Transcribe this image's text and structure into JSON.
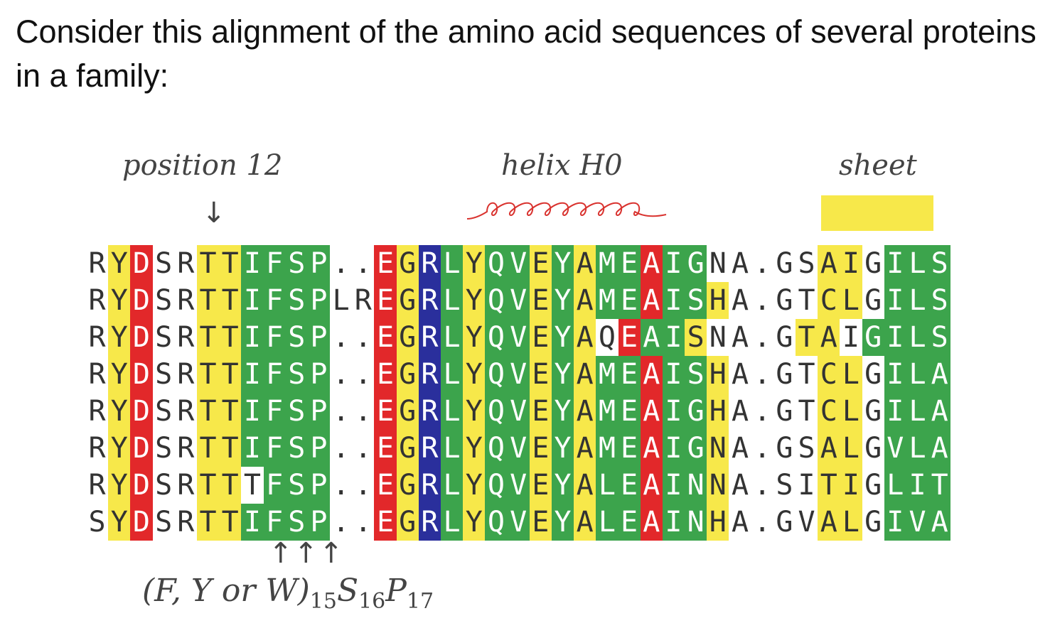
{
  "question": "Consider this alignment of the amino acid sequences of several proteins in a family:",
  "labels": {
    "position": "position 12",
    "helix": "helix H0",
    "sheet": "sheet"
  },
  "arrows": {
    "down": "↓",
    "up": "↑↑↑"
  },
  "motif": {
    "prefix": "(F, Y or W)",
    "sub1": "15",
    "s": "S",
    "sub2": "16",
    "p": "P",
    "sub3": "17"
  },
  "colors": {
    "yellow": "#f7e84a",
    "green": "#3ca44c",
    "red": "#e2282a",
    "blue": "#2a2f9c",
    "helix_coil": "#d9332f"
  },
  "alignment": [
    {
      "seq": "RYDSRTTIFSP..EGRLYQVEYAMEAIGNA.GSAIGILS",
      "colors": "-YR--YYGGGG--RYBGYGGYGYGGRGG-----YY-GGGGY"
    },
    {
      "seq": "RYDSRTTIFSPLREGRLYQVEYAMEAISHA.GTCLGILS",
      "colors": "-YR--YYGGGG--RYBGYGGYGYGGRGGY----YY-GGGGY"
    },
    {
      "seq": "RYDSRTTIFSP..EGRLYQVEYAQEAISNA.GTAIGILS",
      "colors": "-YR--YYGGGG--RYBGYGGYGY-RGGY----YY-GGGGY"
    },
    {
      "seq": "RYDSRTTIFSP..EGRLYQVEYAMEAISHA.GTCLGILA",
      "colors": "-YR--YYGGGG--RYBGYGGYGYGGRGGY----YY-GGGG-"
    },
    {
      "seq": "RYDSRTTIFSP..EGRLYQVEYAMEAIGHA.GTCLGILA",
      "colors": "-YR--YYGGGG--RYBGYGGYGYGGRGGY----YY-GGGG-"
    },
    {
      "seq": "RYDSRTTIFSP..EGRLYQVEYAMEAIGNA.GSALGVLA",
      "colors": "-YR--YYGGGG--RYBGYGGYGYGGRGGY----YY-GGGG-"
    },
    {
      "seq": "RYDSRTTTFSP..EGRLYQVEYALEAINNA.SITIGLIT",
      "colors": "-YR--YY-GGG--RYBGYGGYGYGGRGGY----YY-GGGGY"
    },
    {
      "seq": "SYDSRTTIFSP..EGRLYQVEYALEAINHA.GVALGIVA",
      "colors": "-YR--YYGGGG--RYBGYGGYGYGGRGGY----YY-GGG--"
    }
  ]
}
